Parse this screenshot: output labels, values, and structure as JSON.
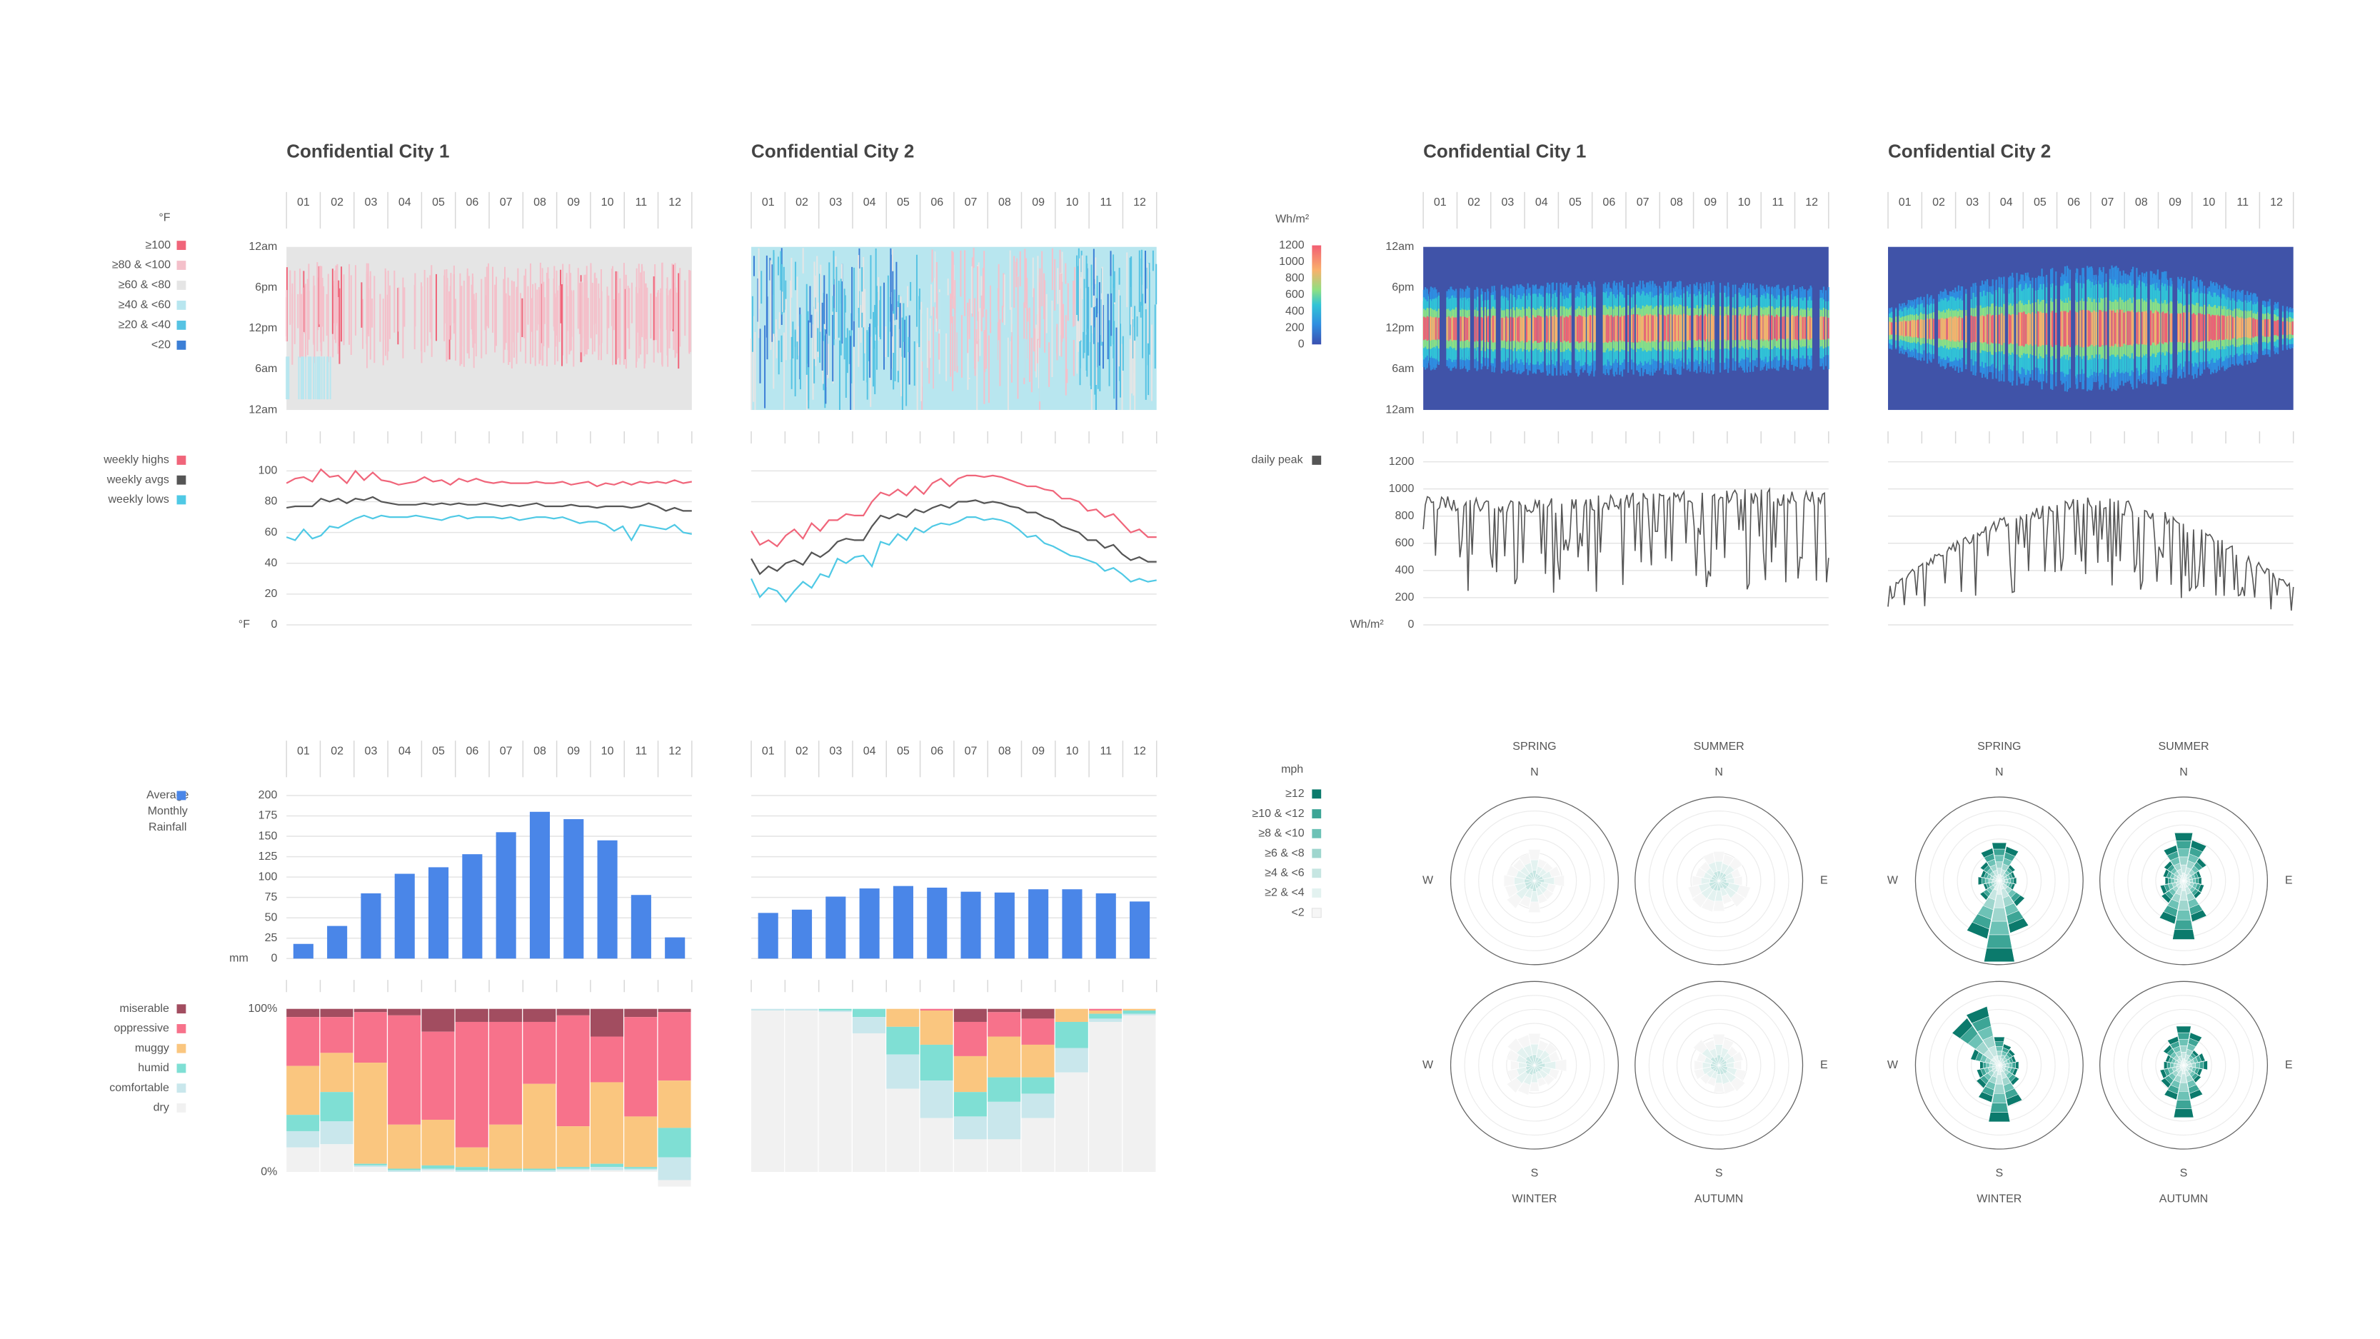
{
  "cities": [
    "Confidential City 1",
    "Confidential City 2"
  ],
  "months": [
    "01",
    "02",
    "03",
    "04",
    "05",
    "06",
    "07",
    "08",
    "09",
    "10",
    "11",
    "12"
  ],
  "colors": {
    "high": "#f0657a",
    "avg": "#555555",
    "low": "#4fc9e5",
    "peak": "#555555",
    "rain": "#4a86e8",
    "grid": "#e4e4e4",
    "text": "#555555"
  },
  "temp_heatmap": {
    "legend_title": "°F",
    "time_ticks": [
      "12am",
      "6pm",
      "12pm",
      "6am",
      "12am"
    ],
    "bins": [
      {
        "label": "≥100",
        "color": "#f0657a"
      },
      {
        "label": "≥80 & <100",
        "color": "#f4c0ca"
      },
      {
        "label": "≥60 & <80",
        "color": "#e5e5e5"
      },
      {
        "label": "≥40 & <60",
        "color": "#b8e6ef"
      },
      {
        "label": "≥20 & <40",
        "color": "#56c3e3"
      },
      {
        "label": "<20",
        "color": "#3c7fd6"
      }
    ]
  },
  "weekly_temps": {
    "legend": [
      "weekly highs",
      "weekly avgs",
      "weekly lows"
    ],
    "unit": "°F",
    "ylim": [
      0,
      100
    ],
    "yticks": [
      0,
      20,
      40,
      60,
      80,
      100
    ],
    "city1": {
      "highs": [
        92,
        95,
        96,
        93,
        101,
        96,
        97,
        92,
        100,
        94,
        99,
        94,
        93,
        91,
        92,
        93,
        96,
        93,
        94,
        91,
        95,
        93,
        95,
        93,
        92,
        93,
        92,
        92,
        92,
        93,
        92,
        92,
        93,
        91,
        92,
        93,
        90,
        92,
        91,
        93,
        91,
        93,
        92,
        93,
        92,
        94,
        92,
        93
      ],
      "avgs": [
        76,
        77,
        77,
        77,
        82,
        80,
        82,
        79,
        82,
        81,
        83,
        80,
        79,
        78,
        78,
        78,
        79,
        78,
        79,
        78,
        79,
        78,
        78,
        79,
        78,
        77,
        78,
        77,
        78,
        79,
        77,
        77,
        77,
        78,
        77,
        77,
        76,
        77,
        77,
        77,
        76,
        77,
        79,
        77,
        74,
        76,
        74,
        74
      ],
      "lows": [
        57,
        55,
        62,
        56,
        58,
        64,
        63,
        66,
        69,
        71,
        69,
        71,
        70,
        70,
        70,
        71,
        70,
        69,
        68,
        70,
        71,
        69,
        70,
        70,
        70,
        69,
        70,
        68,
        69,
        70,
        70,
        69,
        70,
        68,
        66,
        67,
        67,
        65,
        61,
        64,
        55,
        65,
        64,
        63,
        62,
        65,
        60,
        59
      ]
    },
    "city2": {
      "highs": [
        61,
        52,
        55,
        51,
        58,
        62,
        56,
        66,
        61,
        68,
        68,
        72,
        71,
        71,
        80,
        86,
        84,
        88,
        84,
        90,
        85,
        92,
        95,
        90,
        95,
        97,
        97,
        96,
        97,
        96,
        94,
        92,
        90,
        90,
        88,
        87,
        82,
        82,
        80,
        74,
        75,
        70,
        72,
        66,
        60,
        62,
        57,
        57
      ],
      "avgs": [
        43,
        33,
        38,
        35,
        40,
        42,
        39,
        47,
        44,
        48,
        54,
        56,
        55,
        55,
        64,
        71,
        69,
        72,
        70,
        75,
        73,
        76,
        78,
        76,
        80,
        80,
        81,
        79,
        80,
        79,
        77,
        76,
        73,
        73,
        70,
        68,
        64,
        62,
        60,
        55,
        55,
        50,
        52,
        46,
        42,
        44,
        41,
        41
      ],
      "lows": [
        30,
        18,
        24,
        22,
        15,
        22,
        28,
        24,
        33,
        31,
        43,
        40,
        44,
        45,
        38,
        54,
        52,
        59,
        55,
        63,
        60,
        64,
        66,
        65,
        67,
        70,
        70,
        68,
        69,
        68,
        66,
        62,
        57,
        58,
        53,
        51,
        48,
        45,
        44,
        42,
        40,
        35,
        37,
        33,
        28,
        30,
        28,
        29
      ]
    }
  },
  "solar_heatmap": {
    "unit": "Wh/m²",
    "scale_ticks": [
      "1200",
      "1000",
      "800",
      "600",
      "400",
      "200",
      "0"
    ]
  },
  "daily_peak": {
    "legend": "daily peak",
    "unit": "Wh/m²",
    "ylim": [
      0,
      1200
    ],
    "yticks": [
      0,
      200,
      400,
      600,
      800,
      1000,
      1200
    ]
  },
  "rainfall": {
    "legend": [
      "Average",
      "Monthly",
      "Rainfall"
    ],
    "unit": "mm",
    "ylim": [
      0,
      200
    ],
    "yticks": [
      0,
      25,
      50,
      75,
      100,
      125,
      150,
      175,
      200
    ],
    "city1": [
      18,
      40,
      80,
      104,
      112,
      128,
      155,
      180,
      171,
      145,
      78,
      26
    ],
    "city2": [
      56,
      60,
      76,
      86,
      89,
      87,
      82,
      81,
      85,
      85,
      80,
      70
    ]
  },
  "humidity": {
    "ticks": [
      "100%",
      "0%"
    ],
    "categories": [
      {
        "label": "miserable",
        "color": "#a24d60"
      },
      {
        "label": "oppressive",
        "color": "#f7728b"
      },
      {
        "label": "muggy",
        "color": "#fac67f"
      },
      {
        "label": "humid",
        "color": "#7fdfd4"
      },
      {
        "label": "comfortable",
        "color": "#c9e7ec"
      },
      {
        "label": "dry",
        "color": "#f1f1f1"
      }
    ],
    "city1": [
      [
        5,
        30,
        30,
        10,
        10,
        15
      ],
      [
        5,
        22,
        24,
        18,
        14,
        17
      ],
      [
        2,
        31,
        62,
        1,
        1,
        3
      ],
      [
        4,
        67,
        27,
        1,
        1,
        0
      ],
      [
        14,
        54,
        28,
        2,
        1,
        1
      ],
      [
        8,
        77,
        12,
        2,
        1,
        0
      ],
      [
        8,
        63,
        27,
        1,
        1,
        0
      ],
      [
        8,
        38,
        52,
        1,
        1,
        0
      ],
      [
        4,
        68,
        25,
        1,
        1,
        1
      ],
      [
        17,
        28,
        50,
        2,
        2,
        1
      ],
      [
        5,
        61,
        31,
        1,
        1,
        1
      ],
      [
        2,
        42,
        29,
        18,
        14,
        4
      ]
    ],
    "city2": [
      [
        0,
        0,
        0,
        0,
        1,
        99
      ],
      [
        0,
        0,
        0,
        0,
        1,
        99
      ],
      [
        0,
        0,
        0,
        1,
        1,
        98
      ],
      [
        0,
        0,
        0,
        5,
        10,
        85
      ],
      [
        0,
        0,
        11,
        17,
        21,
        51
      ],
      [
        0,
        1,
        21,
        22,
        23,
        33
      ],
      [
        8,
        21,
        22,
        15,
        14,
        20
      ],
      [
        2,
        15,
        25,
        15,
        23,
        20
      ],
      [
        6,
        16,
        20,
        10,
        15,
        33
      ],
      [
        0,
        0,
        8,
        16,
        15,
        61
      ],
      [
        0,
        1,
        2,
        3,
        2,
        92
      ],
      [
        0,
        0,
        1,
        2,
        1,
        96
      ]
    ]
  },
  "wind": {
    "unit": "mph",
    "seasons": [
      "SPRING",
      "SUMMER",
      "WINTER",
      "AUTUMN"
    ],
    "directions": [
      "N",
      "E",
      "S",
      "W"
    ],
    "bins": [
      {
        "label": "≥12",
        "color": "#0b7a6c"
      },
      {
        "label": "≥10 & <12",
        "color": "#3da596"
      },
      {
        "label": "≥8 & <10",
        "color": "#6dc2b6"
      },
      {
        "label": "≥6 & <8",
        "color": "#9fd6ce"
      },
      {
        "label": "≥4 & <6",
        "color": "#c6e6e2"
      },
      {
        "label": "≥2 & <4",
        "color": "#e3f2f0"
      },
      {
        "label": "<2",
        "color": "#f6f6f6"
      }
    ]
  }
}
